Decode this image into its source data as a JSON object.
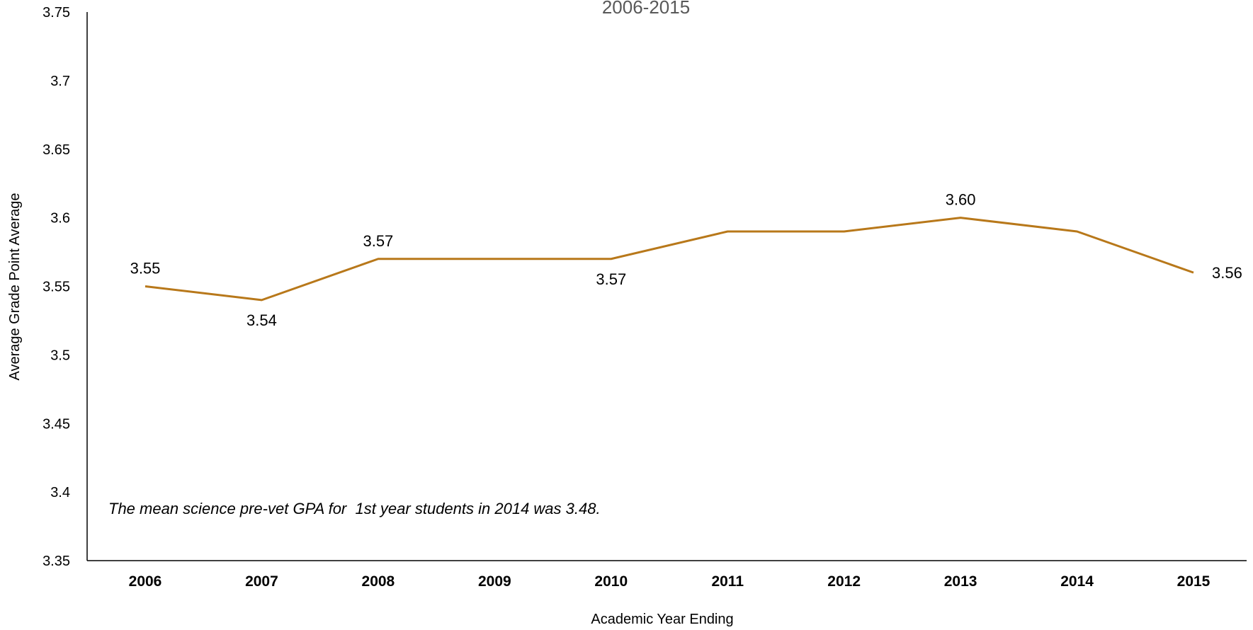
{
  "chart_data": {
    "type": "line",
    "title": "2006-2015",
    "xlabel": "Academic Year Ending",
    "ylabel": "Average Grade Point Average",
    "categories": [
      "2006",
      "2007",
      "2008",
      "2009",
      "2010",
      "2011",
      "2012",
      "2013",
      "2014",
      "2015"
    ],
    "series": [
      {
        "values": [
          3.55,
          3.54,
          3.57,
          3.57,
          3.57,
          3.59,
          3.59,
          3.6,
          3.59,
          3.56
        ],
        "color": "#B8781A"
      }
    ],
    "data_labels": [
      {
        "index": 0,
        "text": "3.55",
        "position": "above"
      },
      {
        "index": 1,
        "text": "3.54",
        "position": "below"
      },
      {
        "index": 2,
        "text": "3.57",
        "position": "above"
      },
      {
        "index": 4,
        "text": "3.57",
        "position": "below"
      },
      {
        "index": 7,
        "text": "3.60",
        "position": "above"
      },
      {
        "index": 9,
        "text": "3.56",
        "position": "right"
      }
    ],
    "ylim": [
      3.35,
      3.75
    ],
    "yticks": [
      "3.35",
      "3.4",
      "3.45",
      "3.5",
      "3.55",
      "3.6",
      "3.65",
      "3.7",
      "3.75"
    ],
    "grid": false,
    "legend": "none",
    "annotation": "The mean science pre-vet GPA for  1st year students in 2014 was 3.48."
  }
}
